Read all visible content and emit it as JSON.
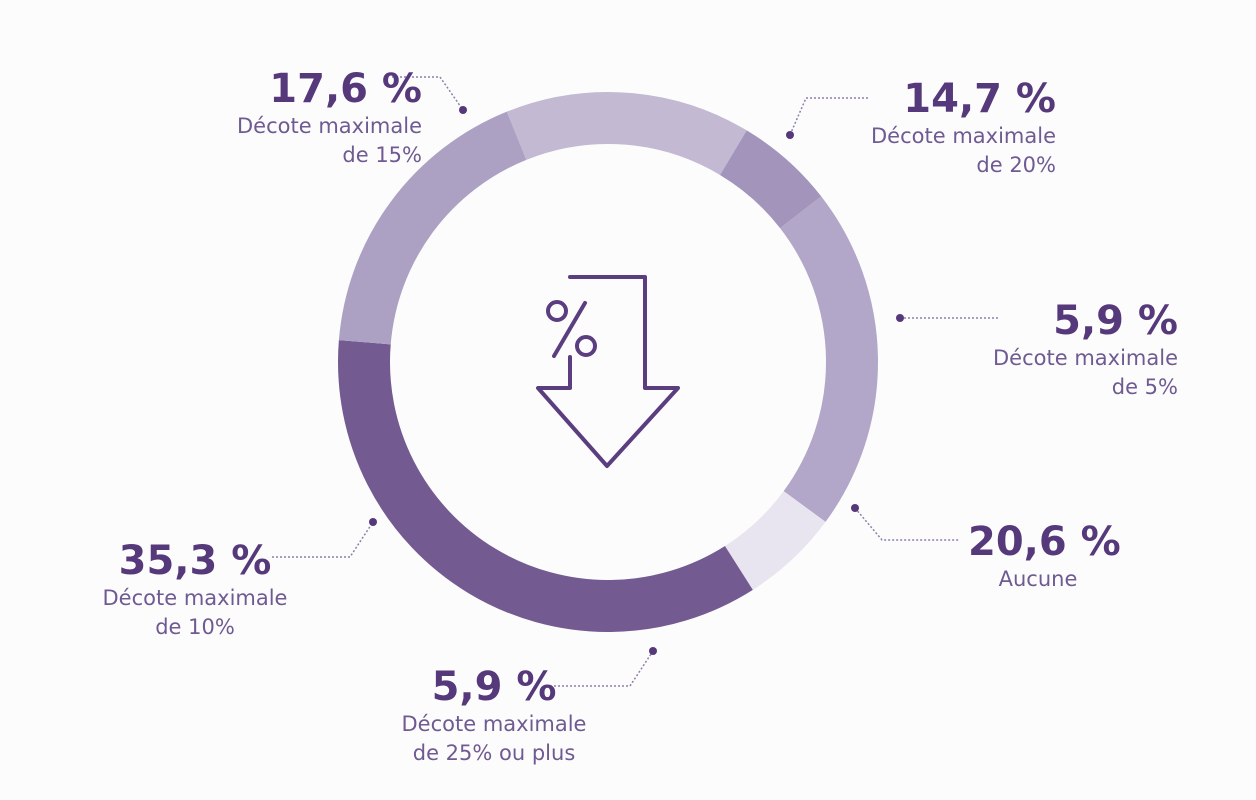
{
  "chart_data": {
    "type": "pie",
    "slices": [
      {
        "label_line1": "Décote maximale",
        "label_line2": "de 20%",
        "value": 14.7,
        "value_text": "14,7 %",
        "color": "#c3b9d3"
      },
      {
        "label_line1": "Décote maximale",
        "label_line2": "de 5%",
        "value": 5.9,
        "value_text": "5,9 %",
        "color": "#a394bc"
      },
      {
        "label_line1": "Aucune",
        "label_line2": "",
        "value": 20.6,
        "value_text": "20,6 %",
        "color": "#b2a7c8"
      },
      {
        "label_line1": "Décote maximale",
        "label_line2": "de 25% ou plus",
        "value": 5.9,
        "value_text": "5,9 %",
        "color": "#e9e5f0"
      },
      {
        "label_line1": "Décote maximale",
        "label_line2": "de 10%",
        "value": 35.3,
        "value_text": "35,3 %",
        "color": "#735a91"
      },
      {
        "label_line1": "Décote maximale",
        "label_line2": "de 15%",
        "value": 17.6,
        "value_text": "17,6 %",
        "color": "#ada1c3"
      }
    ],
    "center_icon": "percent-down-arrow-icon",
    "accent_color": "#55397a"
  }
}
